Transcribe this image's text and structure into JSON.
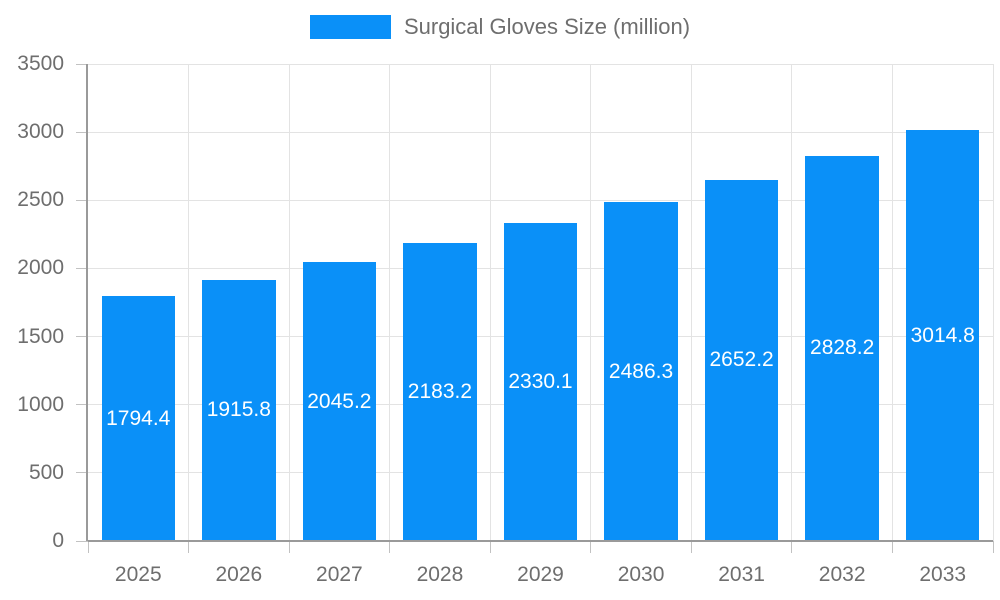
{
  "chart_data": {
    "type": "bar",
    "title": "Surgical Gloves Size (million)",
    "categories": [
      "2025",
      "2026",
      "2027",
      "2028",
      "2029",
      "2030",
      "2031",
      "2032",
      "2033"
    ],
    "series": [
      {
        "name": "Surgical Gloves Size (million)",
        "color": "#0a90f8",
        "values": [
          1794.4,
          1915.8,
          2045.2,
          2183.2,
          2330.1,
          2486.3,
          2652.2,
          2828.2,
          3014.8
        ]
      }
    ],
    "xlabel": "",
    "ylabel": "",
    "ylim": [
      0,
      3500
    ],
    "yticks": [
      0,
      500,
      1000,
      1500,
      2000,
      2500,
      3000,
      3500
    ],
    "grid": true,
    "legend_position": "top",
    "data_labels": {
      "show": true,
      "position": "center",
      "color": "#ffffff"
    }
  },
  "colors": {
    "bar": "#0a90f8",
    "grid": "#e3e3e3",
    "axis": "#9a9a9a",
    "tick": "#c2c2c2",
    "text": "#6e6e6e",
    "bar_label": "#ffffff",
    "background": "#ffffff"
  }
}
